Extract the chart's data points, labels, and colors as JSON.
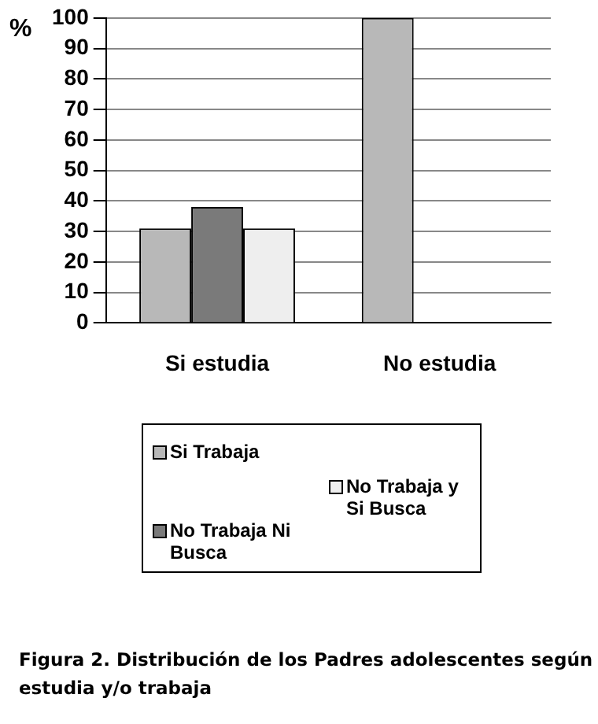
{
  "chart_data": {
    "type": "bar",
    "ylabel": "%",
    "categories": [
      "Si estudia",
      "No estudia"
    ],
    "series": [
      {
        "name": "Si Trabaja",
        "color": "#b8b8b8",
        "values": [
          31,
          100
        ]
      },
      {
        "name": "No Trabaja Ni Busca",
        "color": "#7a7a7a",
        "values": [
          38,
          0
        ]
      },
      {
        "name": "No Trabaja y Si Busca",
        "color": "#eeeeee",
        "values": [
          31,
          0
        ]
      }
    ],
    "ylim": [
      0,
      100
    ],
    "yticks": [
      0,
      10,
      20,
      30,
      40,
      50,
      60,
      70,
      80,
      90,
      100
    ],
    "grid": "y",
    "legend": "bottom",
    "annotations": [
      "Figura 2. Distribución de los Padres adolescentes según estudia y/o trabaja"
    ]
  }
}
